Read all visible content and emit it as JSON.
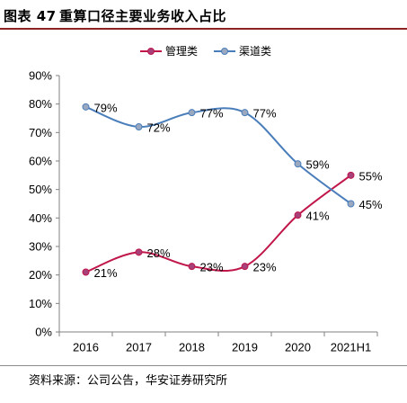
{
  "header": {
    "figure_label": "图表 47"
  },
  "chart_data": {
    "type": "line",
    "title": "重算口径主要业务收入占比",
    "categories": [
      "2016",
      "2017",
      "2018",
      "2019",
      "2020",
      "2021H1"
    ],
    "series": [
      {
        "name": "管理类",
        "values": [
          21,
          28,
          23,
          23,
          41,
          55
        ],
        "labels": [
          "21%",
          "28%",
          "23%",
          "23%",
          "41%",
          "55%"
        ],
        "color": "#C0164A",
        "marker_color": "#A8407A"
      },
      {
        "name": "渠道类",
        "values": [
          79,
          72,
          77,
          77,
          59,
          45
        ],
        "labels": [
          "79%",
          "72%",
          "77%",
          "77%",
          "59%",
          "45%"
        ],
        "color": "#4A7EBB",
        "marker_color": "#9AA9BF"
      }
    ],
    "ylim": [
      0,
      90
    ],
    "y_ticks": [
      0,
      10,
      20,
      30,
      40,
      50,
      60,
      70,
      80,
      90
    ],
    "y_tick_labels": [
      "0%",
      "10%",
      "20%",
      "30%",
      "40%",
      "50%",
      "60%",
      "70%",
      "80%",
      "90%"
    ],
    "smooth": true,
    "markers": "circle",
    "grid": false,
    "legend_position": "top"
  },
  "footer": {
    "source": "资料来源：公司公告，华安证券研究所"
  },
  "colors": {
    "title_rule": "#8B2323",
    "axis": "#808080",
    "source_rule": "#8C8C8C"
  }
}
